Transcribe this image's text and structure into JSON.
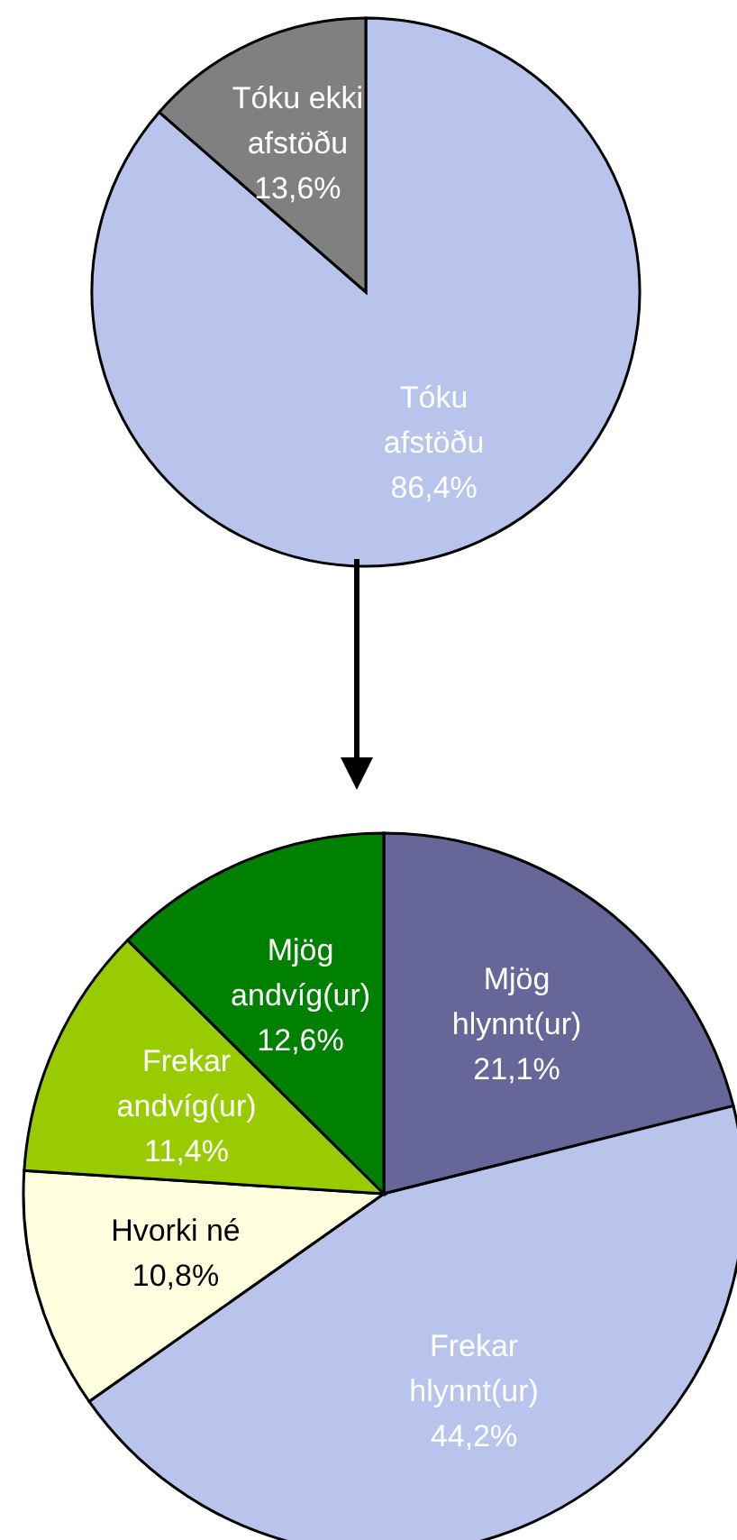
{
  "chart_data": [
    {
      "type": "pie",
      "categories": [
        "Tóku afstöðu",
        "Tóku ekki afstöðu"
      ],
      "values": [
        86.4,
        13.6
      ],
      "value_labels": [
        "86,4%",
        "13,6%"
      ],
      "colors": [
        "#b8c4ec",
        "#808080"
      ],
      "legend": false
    },
    {
      "type": "pie",
      "categories": [
        "Mjög hlynnt(ur)",
        "Frekar hlynnt(ur)",
        "Hvorki né",
        "Frekar andvíg(ur)",
        "Mjög andvíg(ur)"
      ],
      "values": [
        21.1,
        44.2,
        10.8,
        11.4,
        12.6
      ],
      "value_labels": [
        "21,1%",
        "44,2%",
        "10,8%",
        "11,4%",
        "12,6%"
      ],
      "colors": [
        "#666699",
        "#b8c4ec",
        "#ffffe0",
        "#99cc00",
        "#008000"
      ],
      "legend": false
    }
  ]
}
